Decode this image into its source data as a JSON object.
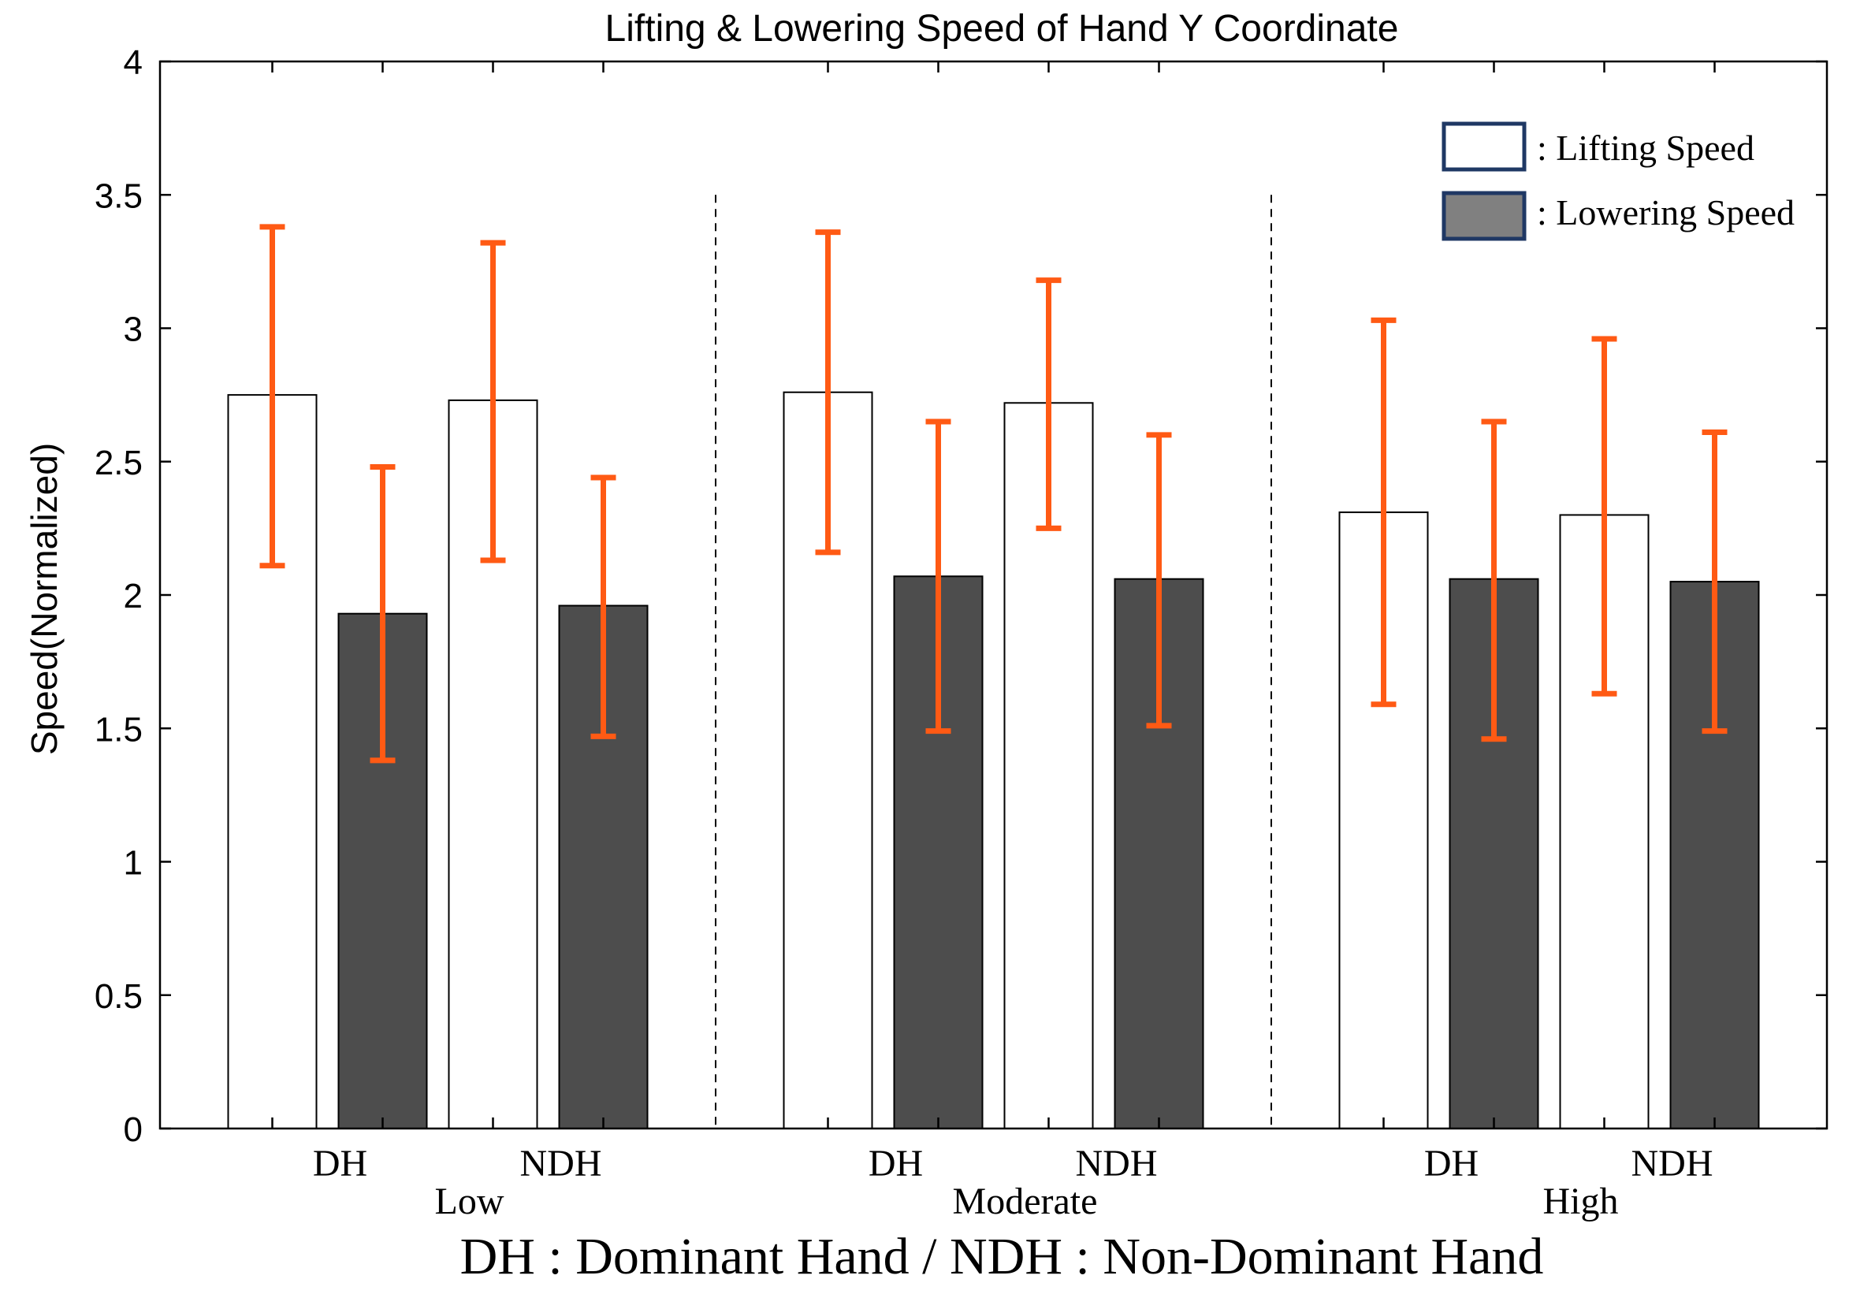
{
  "chart_data": {
    "type": "bar",
    "title": "Lifting & Lowering Speed of Hand Y Coordinate",
    "ylabel": "Speed(Normalized)",
    "xlabel": "DH : Dominant Hand / NDH : Non-Dominant Hand",
    "ylim": [
      0,
      4
    ],
    "yticks": [
      "0",
      "0.5",
      "1",
      "1.5",
      "2",
      "2.5",
      "3",
      "3.5",
      "4"
    ],
    "yticks_values": [
      0,
      0.5,
      1,
      1.5,
      2,
      2.5,
      3,
      3.5,
      4
    ],
    "groups": [
      "Low",
      "Moderate",
      "High"
    ],
    "subgroups": [
      "DH",
      "NDH"
    ],
    "legend": {
      "position": "top-right",
      "entries": [
        ": Lifting Speed",
        ": Lowering Speed"
      ]
    },
    "series": [
      {
        "name": "Lifting Speed",
        "color": "#ffffff",
        "values": [
          2.75,
          2.73,
          2.76,
          2.72,
          2.31,
          2.3
        ],
        "err_low": [
          2.11,
          2.13,
          2.16,
          2.25,
          1.59,
          1.63
        ],
        "err_high": [
          3.38,
          3.32,
          3.36,
          3.18,
          3.03,
          2.96
        ]
      },
      {
        "name": "Lowering Speed",
        "color": "#4d4d4d",
        "values": [
          1.93,
          1.96,
          2.07,
          2.06,
          2.06,
          2.05
        ],
        "err_low": [
          1.38,
          1.47,
          1.49,
          1.51,
          1.46,
          1.49
        ],
        "err_high": [
          2.48,
          2.44,
          2.65,
          2.6,
          2.65,
          2.61
        ]
      }
    ],
    "colors": {
      "error_bar": "#ff5a14",
      "legend_border": "#1f3864",
      "legend_lowering_fill": "#808080",
      "axis": "#000000"
    }
  }
}
